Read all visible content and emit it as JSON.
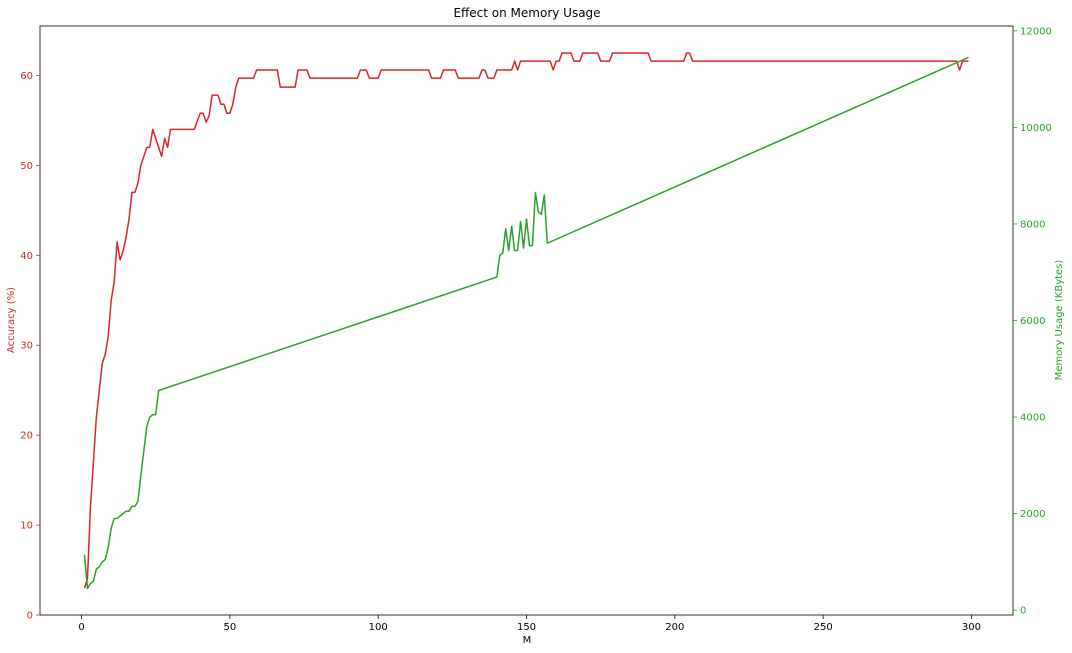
{
  "chart_data": {
    "type": "line",
    "title": "Effect on Memory Usage",
    "xlabel": "M",
    "xlim": [
      -14,
      314
    ],
    "xticks": [
      0,
      50,
      100,
      150,
      200,
      250,
      300
    ],
    "grid": false,
    "left_axis": {
      "label": "Accuracy (%)",
      "color": "#d62728",
      "ylim": [
        0,
        65.5
      ],
      "ticks": [
        0,
        10,
        20,
        30,
        40,
        50,
        60
      ]
    },
    "right_axis": {
      "label": "Memory Usage (KBytes)",
      "color": "#2ca02c",
      "ylim": [
        -100,
        12100
      ],
      "ticks": [
        0,
        2000,
        4000,
        6000,
        8000,
        10000,
        12000
      ]
    },
    "series": [
      {
        "axis": "left",
        "color": "#d62728",
        "points": [
          [
            1,
            3
          ],
          [
            2,
            4
          ],
          [
            3,
            12
          ],
          [
            4,
            17
          ],
          [
            5,
            22
          ],
          [
            6,
            25
          ],
          [
            7,
            28
          ],
          [
            8,
            29
          ],
          [
            9,
            31
          ],
          [
            10,
            35
          ],
          [
            11,
            37
          ],
          [
            12,
            41.5
          ],
          [
            13,
            39.5
          ],
          [
            14,
            40.5
          ],
          [
            15,
            42
          ],
          [
            16,
            44
          ],
          [
            17,
            47
          ],
          [
            18,
            47
          ],
          [
            19,
            48
          ],
          [
            20,
            50
          ],
          [
            21,
            51
          ],
          [
            22,
            52
          ],
          [
            23,
            52
          ],
          [
            24,
            54
          ],
          [
            25,
            53
          ],
          [
            26,
            52
          ],
          [
            27,
            51
          ],
          [
            28,
            53
          ],
          [
            29,
            52
          ],
          [
            30,
            54
          ],
          [
            35,
            54
          ],
          [
            38,
            54
          ],
          [
            40,
            55.8
          ],
          [
            41,
            55.8
          ],
          [
            42,
            54.8
          ],
          [
            43,
            55.5
          ],
          [
            44,
            57.8
          ],
          [
            46,
            57.8
          ],
          [
            47,
            56.8
          ],
          [
            48,
            56.8
          ],
          [
            49,
            55.8
          ],
          [
            50,
            55.8
          ],
          [
            51,
            56.8
          ],
          [
            52,
            58.7
          ],
          [
            53,
            59.7
          ],
          [
            58,
            59.7
          ],
          [
            59,
            60.6
          ],
          [
            66,
            60.6
          ],
          [
            67,
            58.7
          ],
          [
            72,
            58.7
          ],
          [
            73,
            60.6
          ],
          [
            76,
            60.6
          ],
          [
            77,
            59.7
          ],
          [
            93,
            59.7
          ],
          [
            94,
            60.6
          ],
          [
            96,
            60.6
          ],
          [
            97,
            59.7
          ],
          [
            100,
            59.7
          ],
          [
            101,
            60.6
          ],
          [
            117,
            60.6
          ],
          [
            118,
            59.7
          ],
          [
            121,
            59.7
          ],
          [
            122,
            60.6
          ],
          [
            126,
            60.6
          ],
          [
            127,
            59.7
          ],
          [
            134,
            59.7
          ],
          [
            135,
            60.6
          ],
          [
            136,
            60.6
          ],
          [
            137,
            59.7
          ],
          [
            139,
            59.7
          ],
          [
            140,
            60.6
          ],
          [
            145,
            60.6
          ],
          [
            146,
            61.6
          ],
          [
            147,
            60.6
          ],
          [
            148,
            61.6
          ],
          [
            158,
            61.6
          ],
          [
            159,
            60.6
          ],
          [
            160,
            61.6
          ],
          [
            161,
            61.6
          ],
          [
            162,
            62.5
          ],
          [
            165,
            62.5
          ],
          [
            166,
            61.6
          ],
          [
            168,
            61.6
          ],
          [
            169,
            62.5
          ],
          [
            174,
            62.5
          ],
          [
            175,
            61.6
          ],
          [
            178,
            61.6
          ],
          [
            179,
            62.5
          ],
          [
            191,
            62.5
          ],
          [
            192,
            61.6
          ],
          [
            203,
            61.6
          ],
          [
            204,
            62.5
          ],
          [
            205,
            62.5
          ],
          [
            206,
            61.6
          ],
          [
            294,
            61.6
          ],
          [
            295,
            61.6
          ],
          [
            296,
            60.6
          ],
          [
            297,
            61.6
          ],
          [
            299,
            61.6
          ]
        ]
      },
      {
        "axis": "right",
        "color": "#2ca02c",
        "points": [
          [
            1,
            1150
          ],
          [
            2,
            450
          ],
          [
            3,
            550
          ],
          [
            4,
            600
          ],
          [
            5,
            850
          ],
          [
            6,
            900
          ],
          [
            7,
            1000
          ],
          [
            8,
            1050
          ],
          [
            9,
            1300
          ],
          [
            10,
            1700
          ],
          [
            11,
            1900
          ],
          [
            12,
            1900
          ],
          [
            13,
            1950
          ],
          [
            14,
            2000
          ],
          [
            15,
            2050
          ],
          [
            16,
            2050
          ],
          [
            17,
            2150
          ],
          [
            18,
            2150
          ],
          [
            19,
            2250
          ],
          [
            20,
            2800
          ],
          [
            21,
            3300
          ],
          [
            22,
            3800
          ],
          [
            23,
            4000
          ],
          [
            24,
            4050
          ],
          [
            25,
            4050
          ],
          [
            26,
            4550
          ],
          [
            140,
            6900
          ],
          [
            141,
            7350
          ],
          [
            142,
            7400
          ],
          [
            143,
            7900
          ],
          [
            144,
            7450
          ],
          [
            145,
            7950
          ],
          [
            146,
            7450
          ],
          [
            147,
            7450
          ],
          [
            148,
            8050
          ],
          [
            149,
            7500
          ],
          [
            150,
            8100
          ],
          [
            151,
            7550
          ],
          [
            152,
            7550
          ],
          [
            153,
            8650
          ],
          [
            154,
            8250
          ],
          [
            155,
            8200
          ],
          [
            156,
            8600
          ],
          [
            157,
            7600
          ],
          [
            299,
            11450
          ]
        ]
      }
    ]
  }
}
